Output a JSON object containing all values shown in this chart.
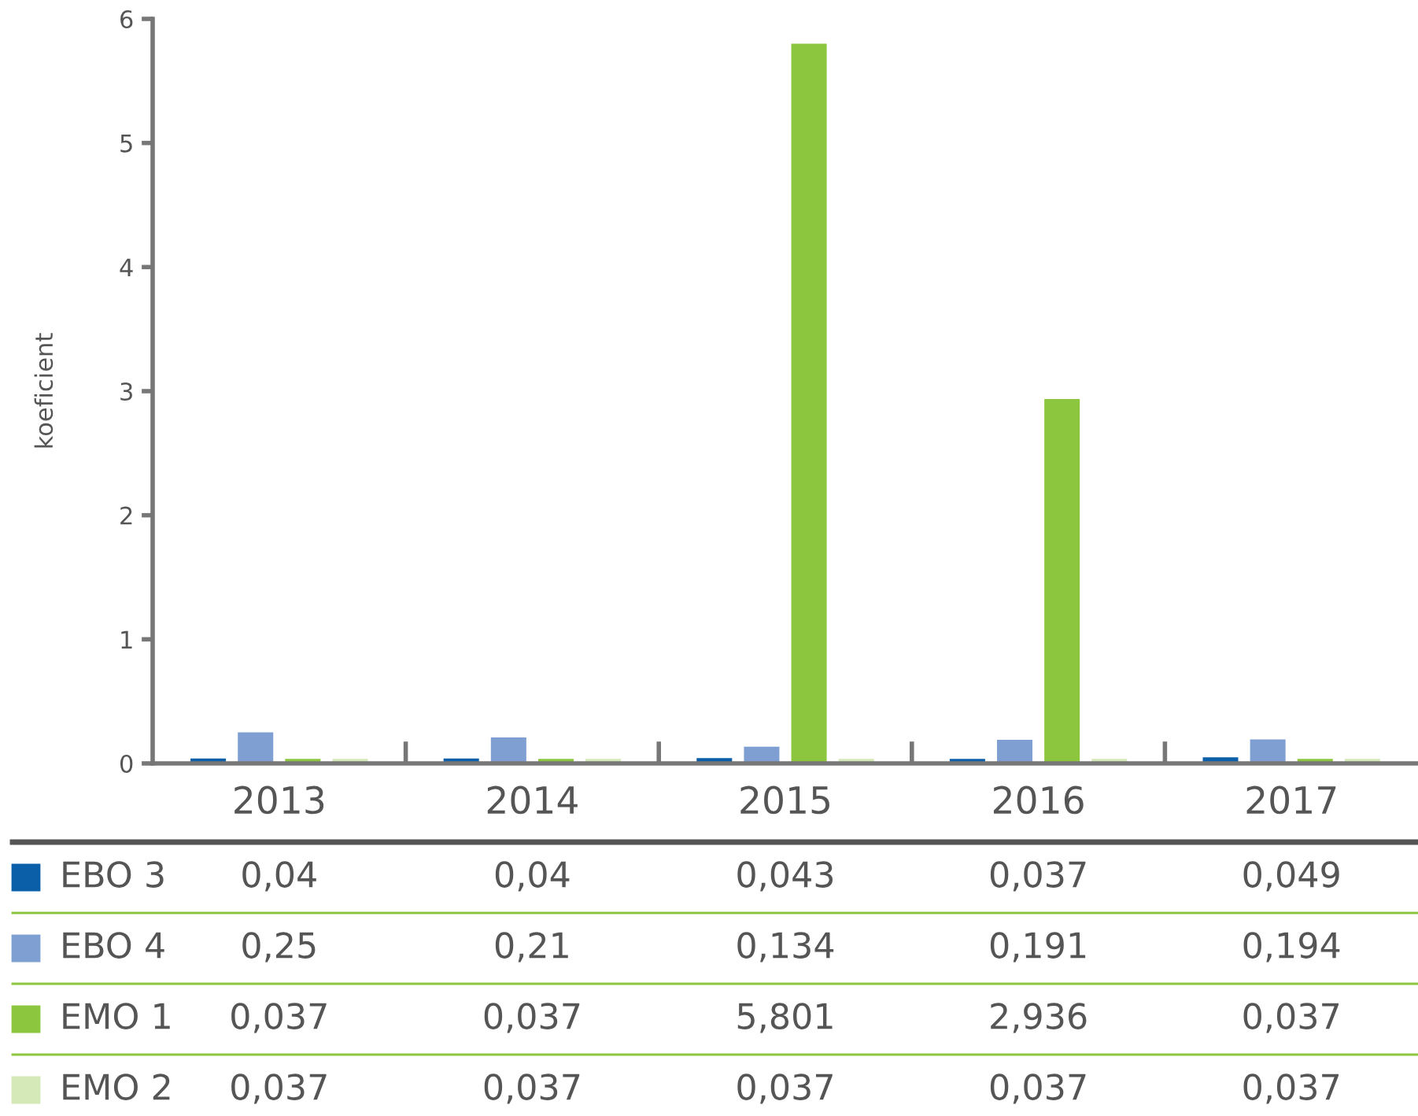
{
  "chart_data": {
    "type": "bar",
    "ylabel": "koeficient",
    "categories": [
      "2013",
      "2014",
      "2015",
      "2016",
      "2017"
    ],
    "series": [
      {
        "name": "EBO 3",
        "color": "#0a5fa8",
        "values": [
          0.04,
          0.04,
          0.043,
          0.037,
          0.049
        ],
        "value_labels": [
          "0,04",
          "0,04",
          "0,043",
          "0,037",
          "0,049"
        ]
      },
      {
        "name": "EBO 4",
        "color": "#7f9fd2",
        "values": [
          0.25,
          0.21,
          0.134,
          0.191,
          0.194
        ],
        "value_labels": [
          "0,25",
          "0,21",
          "0,134",
          "0,191",
          "0,194"
        ]
      },
      {
        "name": "EMO 1",
        "color": "#8cc63f",
        "values": [
          0.037,
          0.037,
          5.801,
          2.936,
          0.037
        ],
        "value_labels": [
          "0,037",
          "0,037",
          "5,801",
          "2,936",
          "0,037"
        ]
      },
      {
        "name": "EMO 2",
        "color": "#d4e8b8",
        "values": [
          0.037,
          0.037,
          0.037,
          0.037,
          0.037
        ],
        "value_labels": [
          "0,037",
          "0,037",
          "0,037",
          "0,037",
          "0,037"
        ]
      }
    ],
    "ylim": [
      0,
      6
    ],
    "yticks": [
      0,
      1,
      2,
      3,
      4,
      5,
      6
    ],
    "grid": false,
    "legend": "bottom"
  }
}
